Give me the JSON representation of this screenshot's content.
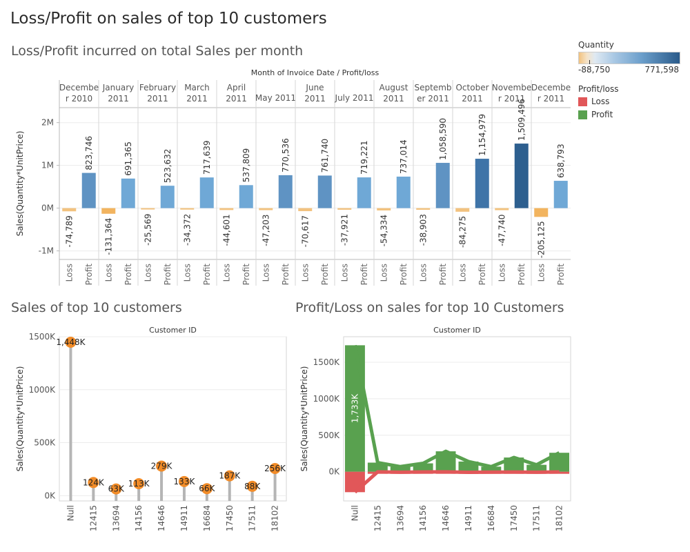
{
  "dashboard_title": "Loss/Profit on sales of top 10 customers",
  "colors": {
    "loss_lowest": "#f2b45f",
    "loss_bar": "#f2c27f",
    "profit_low": "#6fa8d6",
    "profit_high": "#2d5f8f",
    "lollipop_dot": "#f28c28",
    "lollipop_stick": "#b5b5b5",
    "profit_green": "#59a14f",
    "loss_red": "#e15759",
    "axis": "#b8b8b8",
    "grid": "#ececec"
  },
  "legends": {
    "quantity": {
      "title": "Quantity",
      "min_label": "-88,750",
      "max_label": "771,598"
    },
    "profit_loss": {
      "title": "Profit/loss",
      "items": [
        {
          "label": "Loss",
          "color": "#e15759"
        },
        {
          "label": "Profit",
          "color": "#59a14f"
        }
      ]
    }
  },
  "chart_data": [
    {
      "type": "bar",
      "title": "Loss/Profit incurred on total Sales per month",
      "header": "Month of Invoice Date  /  Profit/loss",
      "ylabel": "Sales(Quantity*UnitPrice)",
      "ylim": [
        -1200000,
        2350000
      ],
      "yticks": [
        {
          "value": 2000000,
          "label": "2M"
        },
        {
          "value": 1000000,
          "label": "1M"
        },
        {
          "value": 0,
          "label": "0M"
        },
        {
          "value": -1000000,
          "label": "-1M"
        }
      ],
      "sub_categories": [
        "Loss",
        "Profit"
      ],
      "months": [
        {
          "label": "Decembe\nr 2010",
          "loss": -74789,
          "loss_label": "-74,789",
          "profit": 823746,
          "profit_label": "823,746"
        },
        {
          "label": "January\n2011",
          "loss": -131364,
          "loss_label": "-131,364",
          "profit": 691365,
          "profit_label": "691,365"
        },
        {
          "label": "February\n2011",
          "loss": -25569,
          "loss_label": "-25,569",
          "profit": 523632,
          "profit_label": "523,632"
        },
        {
          "label": "March\n2011",
          "loss": -34372,
          "loss_label": "-34,372",
          "profit": 717639,
          "profit_label": "717,639"
        },
        {
          "label": "April\n2011",
          "loss": -44601,
          "loss_label": "-44,601",
          "profit": 537809,
          "profit_label": "537,809"
        },
        {
          "label": "May 2011",
          "loss": -47203,
          "loss_label": "-47,203",
          "profit": 770536,
          "profit_label": "770,536"
        },
        {
          "label": "June\n2011",
          "loss": -70617,
          "loss_label": "-70,617",
          "profit": 761740,
          "profit_label": "761,740"
        },
        {
          "label": "July 2011",
          "loss": -37921,
          "loss_label": "-37,921",
          "profit": 719221,
          "profit_label": "719,221"
        },
        {
          "label": "August\n2011",
          "loss": -54334,
          "loss_label": "-54,334",
          "profit": 737014,
          "profit_label": "737,014"
        },
        {
          "label": "Septemb\ner 2011",
          "loss": -38903,
          "loss_label": "-38,903",
          "profit": 1058590,
          "profit_label": "1,058,590"
        },
        {
          "label": "October\n2011",
          "loss": -84275,
          "loss_label": "-84,275",
          "profit": 1154979,
          "profit_label": "1,154,979"
        },
        {
          "label": "Novembe\nr 2011",
          "loss": -47740,
          "loss_label": "-47,740",
          "profit": 1509496,
          "profit_label": "1,509,496"
        },
        {
          "label": "Decembe\nr 2011",
          "loss": -205125,
          "loss_label": "-205,125",
          "profit": 638793,
          "profit_label": "638,793"
        }
      ]
    },
    {
      "type": "lollipop",
      "title": "Sales of top 10 customers",
      "header": "Customer ID",
      "ylabel": "Sales(Quantity*UnitPrice)",
      "ylim": [
        -50000,
        1500000
      ],
      "yticks": [
        {
          "value": 1500000,
          "label": "1500K"
        },
        {
          "value": 1000000,
          "label": "1000K"
        },
        {
          "value": 500000,
          "label": "500K"
        },
        {
          "value": 0,
          "label": "0K"
        }
      ],
      "categories": [
        "Null",
        "12415",
        "13694",
        "14156",
        "14646",
        "14911",
        "16684",
        "17450",
        "17511",
        "18102"
      ],
      "values": [
        1448000,
        124000,
        63000,
        113000,
        279000,
        133000,
        66000,
        187000,
        88000,
        256000
      ],
      "labels": [
        "1,448K",
        "124K",
        "63K",
        "113K",
        "279K",
        "133K",
        "66K",
        "187K",
        "88K",
        "256K"
      ]
    },
    {
      "type": "bar",
      "title": "Profit/Loss on sales for top 10 Customers",
      "header": "Customer ID",
      "ylabel": "Sales(Quantity*UnitPrice)",
      "ylim": [
        -400000,
        1850000
      ],
      "yticks": [
        {
          "value": 1500000,
          "label": "1500K"
        },
        {
          "value": 1000000,
          "label": "1000K"
        },
        {
          "value": 500000,
          "label": "500K"
        },
        {
          "value": 0,
          "label": "0K"
        }
      ],
      "categories": [
        "Null",
        "12415",
        "13694",
        "14156",
        "14646",
        "14911",
        "16684",
        "17450",
        "17511",
        "18102"
      ],
      "series": [
        {
          "name": "Profit",
          "values": [
            1733000,
            125000,
            70000,
            115000,
            280000,
            140000,
            70000,
            195000,
            95000,
            260000
          ]
        },
        {
          "name": "Loss",
          "values": [
            -280000,
            -2000,
            -6000,
            -3000,
            -2000,
            -8000,
            -5000,
            -4000,
            -6000,
            -3000
          ]
        }
      ],
      "data_labels": [
        "1,733K"
      ]
    }
  ]
}
